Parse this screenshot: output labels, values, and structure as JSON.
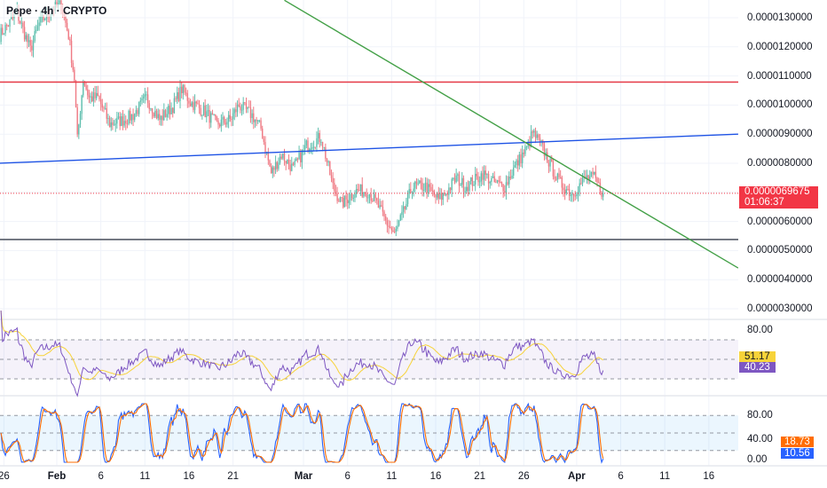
{
  "header": {
    "title": "Pepe · 4h · CRYPTO"
  },
  "price_axis": {
    "labels": [
      "0.0000130000",
      "0.0000120000",
      "0.0000110000",
      "0.0000100000",
      "0.0000090000",
      "0.0000080000",
      "0.0000060000",
      "0.0000050000",
      "0.0000040000",
      "0.0000030000"
    ],
    "values": [
      1.3e-05,
      1.2e-05,
      1.1e-05,
      1e-05,
      9e-06,
      8e-06,
      6e-06,
      5e-06,
      4e-06,
      3e-06
    ]
  },
  "current_price": {
    "value": "0.0000069675",
    "countdown": "01:06:37",
    "price": 6.9675e-06,
    "color": "#f23645"
  },
  "time_axis": {
    "ticks": [
      {
        "label": "26",
        "date": "Jan 26",
        "bold": false
      },
      {
        "label": "Feb",
        "date": "Feb 1",
        "bold": true
      },
      {
        "label": "6",
        "date": "Feb 6",
        "bold": false
      },
      {
        "label": "11",
        "date": "Feb 11",
        "bold": false
      },
      {
        "label": "16",
        "date": "Feb 16",
        "bold": false
      },
      {
        "label": "21",
        "date": "Feb 21",
        "bold": false
      },
      {
        "label": "Mar",
        "date": "Mar 1",
        "bold": true
      },
      {
        "label": "6",
        "date": "Mar 6",
        "bold": false
      },
      {
        "label": "11",
        "date": "Mar 11",
        "bold": false
      },
      {
        "label": "16",
        "date": "Mar 16",
        "bold": false
      },
      {
        "label": "21",
        "date": "Mar 21",
        "bold": false
      },
      {
        "label": "26",
        "date": "Mar 26",
        "bold": false
      },
      {
        "label": "Apr",
        "date": "Apr 1",
        "bold": true
      },
      {
        "label": "6",
        "date": "Apr 6",
        "bold": false
      },
      {
        "label": "11",
        "date": "Apr 11",
        "bold": false
      },
      {
        "label": "16",
        "date": "Apr 16",
        "bold": false
      }
    ]
  },
  "chart_data": {
    "type": "candlestick",
    "interval": "4h",
    "ylim": [
      2.8e-06,
      1.34e-05
    ],
    "colors": {
      "up": "#5fbfae",
      "down": "#ef7a84"
    },
    "price_path": [
      [
        "Jan 25 12:00",
        1.24e-05
      ],
      [
        "Jan 27 12:00",
        1.315e-05
      ],
      [
        "Jan 29 00:00",
        1.19e-05
      ],
      [
        "Jan 30 00:00",
        1.28e-05
      ],
      [
        "Jan 31 12:00",
        1.33e-05
      ],
      [
        "Feb 1 12:00",
        1.345e-05
      ],
      [
        "Feb 2 08:00",
        1.24e-05
      ],
      [
        "Feb 3 00:00",
        1.09e-05
      ],
      [
        "Feb 3 08:00",
        8.8e-06
      ],
      [
        "Feb 4 00:00",
        1.09e-05
      ],
      [
        "Feb 4 16:00",
        1.025e-05
      ],
      [
        "Feb 5 16:00",
        1.025e-05
      ],
      [
        "Feb 7 00:00",
        9.35e-06
      ],
      [
        "Feb 8 16:00",
        9.5e-06
      ],
      [
        "Feb 9 16:00",
        9.65e-06
      ],
      [
        "Feb 11 04:00",
        1.025e-05
      ],
      [
        "Feb 12 16:00",
        9.5e-06
      ],
      [
        "Feb 14 04:00",
        9.95e-06
      ],
      [
        "Feb 15 04:00",
        1.055e-05
      ],
      [
        "Feb 16 04:00",
        1.01e-05
      ],
      [
        "Feb 17 16:00",
        9.8e-06
      ],
      [
        "Feb 19 04:00",
        9.35e-06
      ],
      [
        "Feb 20 16:00",
        9.5e-06
      ],
      [
        "Feb 21 16:00",
        1e-05
      ],
      [
        "Feb 23 04:00",
        9.65e-06
      ],
      [
        "Feb 24 04:00",
        9.2e-06
      ],
      [
        "Feb 25 08:00",
        7.65e-06
      ],
      [
        "Feb 26 12:00",
        8.3e-06
      ],
      [
        "Feb 27 20:00",
        7.8e-06
      ],
      [
        "Mar 1 08:00",
        8.6e-06
      ],
      [
        "Mar 3 00:00",
        8.9e-06
      ],
      [
        "Mar 4 08:00",
        7.2e-06
      ],
      [
        "Mar 5 08:00",
        6.6e-06
      ],
      [
        "Mar 6 20:00",
        7.05e-06
      ],
      [
        "Mar 8 08:00",
        7.05e-06
      ],
      [
        "Mar 9 08:00",
        6.6e-06
      ],
      [
        "Mar 10 08:00",
        6e-06
      ],
      [
        "Mar 11 08:00",
        5.55e-06
      ],
      [
        "Mar 12 08:00",
        6.3e-06
      ],
      [
        "Mar 13 08:00",
        7.2e-06
      ],
      [
        "Mar 14 20:00",
        7.2e-06
      ],
      [
        "Mar 16 08:00",
        6.75e-06
      ],
      [
        "Mar 17 08:00",
        7.05e-06
      ],
      [
        "Mar 18 08:00",
        7.5e-06
      ],
      [
        "Mar 19 08:00",
        7.2e-06
      ],
      [
        "Mar 20 20:00",
        7.5e-06
      ],
      [
        "Mar 21 08:00",
        7.65e-06
      ],
      [
        "Mar 22 12:00",
        7.35e-06
      ],
      [
        "Mar 23 20:00",
        7.2e-06
      ],
      [
        "Mar 24 20:00",
        7.8e-06
      ],
      [
        "Mar 26 12:00",
        8.6e-06
      ],
      [
        "Mar 27 00:00",
        9.05e-06
      ],
      [
        "Mar 28 00:00",
        8.6e-06
      ],
      [
        "Mar 29 00:00",
        7.95e-06
      ],
      [
        "Mar 30 00:00",
        7.35e-06
      ],
      [
        "Mar 31 12:00",
        6.95e-06
      ],
      [
        "Apr 2 00:00",
        7.5e-06
      ],
      [
        "Apr 3 00:00",
        7.5e-06
      ],
      [
        "Apr 3 12:00",
        7.2e-06
      ],
      [
        "Apr 4 00:00",
        6.9675e-06
      ]
    ],
    "drawings": [
      {
        "kind": "horizontal",
        "price": 1.079e-05,
        "color": "#e53946"
      },
      {
        "kind": "horizontal",
        "price": 5.38e-06,
        "color": "#555a66"
      },
      {
        "kind": "trend",
        "from": [
          "Jan 25 12:00",
          8e-06
        ],
        "to": [
          "Apr 19 08:00",
          9e-06
        ],
        "color": "#1e53e5"
      },
      {
        "kind": "trend",
        "from": [
          "Feb 26 20:00",
          1.36e-05
        ],
        "to": [
          "Apr 19 08:00",
          4.4e-06
        ],
        "color": "#43a047"
      }
    ]
  },
  "rsi": {
    "axis_label": "80.00",
    "levels": [
      70,
      50,
      30
    ],
    "ma_value": "51.17",
    "rsi_value": "40.23",
    "ma_color": "#f7d33a",
    "rsi_color": "#7e57c2"
  },
  "stoch_rsi": {
    "axis_labels": [
      "80.00",
      "40.00",
      "0.00"
    ],
    "levels": [
      80,
      50,
      20
    ],
    "d_value": "18.73",
    "k_value": "10.56",
    "d_color": "#ff6d00",
    "k_color": "#2962ff"
  }
}
